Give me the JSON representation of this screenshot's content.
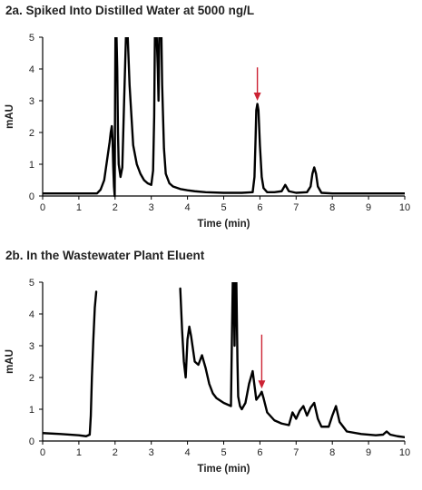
{
  "chart_data": [
    {
      "type": "line",
      "title": "2a. Spiked Into Distilled Water at 5000 ng/L",
      "xlabel": "Time (min)",
      "ylabel": "mAU",
      "xlim": [
        0,
        10
      ],
      "ylim": [
        0,
        5
      ],
      "xticks": [
        "0",
        "1",
        "2",
        "3",
        "4",
        "5",
        "6",
        "7",
        "8",
        "9",
        "10"
      ],
      "yticks": [
        "0",
        "1",
        "2",
        "3",
        "4",
        "5"
      ],
      "grid": false,
      "line_color": "#000000",
      "arrow_color": "#cc2233",
      "annotations": [
        {
          "type": "arrow",
          "x": 5.93,
          "y_from": 4.05,
          "y_to": 3.0
        }
      ],
      "series": [
        {
          "x": [
            0,
            1.5,
            1.6,
            1.7,
            1.75,
            1.8,
            1.85,
            1.88,
            1.91,
            1.93,
            1.95,
            1.97,
            1.99,
            2.0,
            2.01,
            2.02,
            2.04,
            2.06,
            2.08,
            2.1,
            2.15,
            2.2,
            2.25,
            2.3,
            2.35,
            2.4,
            2.5,
            2.6,
            2.7,
            2.8,
            2.9,
            3.0,
            3.05,
            3.08,
            3.1,
            3.12,
            3.15,
            3.18,
            3.2,
            3.22,
            3.25,
            3.28,
            3.3,
            3.35,
            3.4,
            3.5,
            3.6,
            3.8,
            4.0,
            4.2,
            4.5,
            5.0,
            5.5,
            5.8,
            5.85,
            5.88,
            5.9,
            5.93,
            5.96,
            6.0,
            6.05,
            6.1,
            6.2,
            6.4,
            6.6,
            6.7,
            6.8,
            7.0,
            7.3,
            7.4,
            7.45,
            7.5,
            7.55,
            7.6,
            7.7,
            8.0,
            9.0,
            10.0
          ],
          "y": [
            0.08,
            0.08,
            0.2,
            0.5,
            0.9,
            1.3,
            1.7,
            2.0,
            2.2,
            1.8,
            0.9,
            0.3,
            0.0,
            3.0,
            5.0,
            5.0,
            5.0,
            4.0,
            2.0,
            1.0,
            0.6,
            0.9,
            3.0,
            5.0,
            5.0,
            3.5,
            1.6,
            1.0,
            0.7,
            0.5,
            0.4,
            0.35,
            0.8,
            2.5,
            5.0,
            5.0,
            5.0,
            4.0,
            3.0,
            5.0,
            5.0,
            5.0,
            3.5,
            1.5,
            0.7,
            0.4,
            0.3,
            0.22,
            0.18,
            0.15,
            0.12,
            0.1,
            0.1,
            0.12,
            0.6,
            1.8,
            2.7,
            2.9,
            2.7,
            1.6,
            0.6,
            0.25,
            0.12,
            0.12,
            0.15,
            0.35,
            0.15,
            0.1,
            0.12,
            0.3,
            0.7,
            0.9,
            0.7,
            0.3,
            0.1,
            0.08,
            0.08,
            0.08
          ]
        }
      ]
    },
    {
      "type": "line",
      "title": "2b. In the Wastewater Plant Eluent",
      "xlabel": "Time (min)",
      "ylabel": "mAU",
      "xlim": [
        0,
        10
      ],
      "ylim": [
        0,
        5
      ],
      "xticks": [
        "0",
        "1",
        "2",
        "3",
        "4",
        "5",
        "6",
        "7",
        "8",
        "9",
        "10"
      ],
      "yticks": [
        "0",
        "1",
        "2",
        "3",
        "4",
        "5"
      ],
      "grid": false,
      "line_color": "#000000",
      "arrow_color": "#cc2233",
      "annotations": [
        {
          "type": "arrow",
          "x": 6.05,
          "y_from": 3.35,
          "y_to": 1.65
        }
      ],
      "series": [
        {
          "x": [
            0,
            0.5,
            1.0,
            1.2,
            1.3,
            1.33,
            1.36,
            1.4,
            1.44,
            1.48
          ],
          "y": [
            0.25,
            0.22,
            0.18,
            0.15,
            0.2,
            0.8,
            2.0,
            3.2,
            4.2,
            4.7
          ]
        },
        {
          "x": [
            3.8,
            3.85,
            3.9,
            3.95,
            4.0,
            4.05,
            4.1,
            4.2,
            4.3,
            4.4,
            4.5,
            4.6,
            4.7,
            4.8,
            5.0,
            5.2,
            5.23,
            5.25,
            5.28,
            5.3,
            5.32,
            5.35,
            5.38,
            5.4,
            5.45,
            5.5,
            5.6,
            5.7,
            5.8,
            5.9,
            6.0,
            6.05,
            6.1,
            6.2,
            6.4,
            6.6,
            6.8,
            6.9,
            7.0,
            7.1,
            7.2,
            7.3,
            7.4,
            7.5,
            7.6,
            7.7,
            7.9,
            8.0,
            8.1,
            8.2,
            8.4,
            8.8,
            9.2,
            9.4,
            9.5,
            9.6,
            9.8,
            10.0
          ],
          "y": [
            4.8,
            3.5,
            2.5,
            2.0,
            3.2,
            3.6,
            3.3,
            2.5,
            2.4,
            2.7,
            2.3,
            1.8,
            1.5,
            1.35,
            1.2,
            1.1,
            3.5,
            5.0,
            5.0,
            3.0,
            5.0,
            5.0,
            2.5,
            1.4,
            1.1,
            1.0,
            1.2,
            1.8,
            2.2,
            1.3,
            1.45,
            1.55,
            1.35,
            0.9,
            0.65,
            0.55,
            0.5,
            0.9,
            0.7,
            0.95,
            1.1,
            0.8,
            1.05,
            1.2,
            0.7,
            0.45,
            0.45,
            0.8,
            1.1,
            0.6,
            0.3,
            0.22,
            0.18,
            0.2,
            0.3,
            0.2,
            0.15,
            0.12
          ]
        }
      ]
    }
  ]
}
